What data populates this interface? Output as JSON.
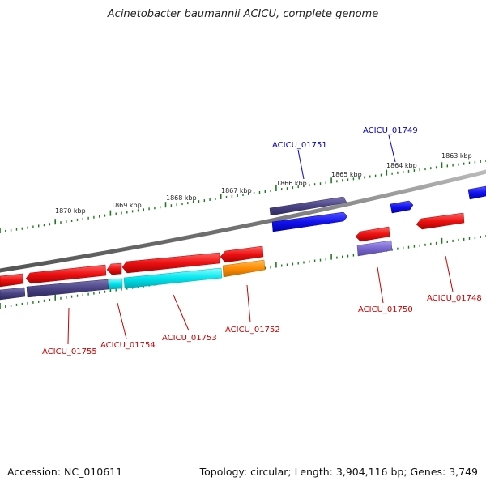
{
  "title": "Acinetobacter baumannii ACICU, complete genome",
  "footer": {
    "accession": "Accession: NC_010611",
    "topology": "Topology: circular; Length: 3,904,116 bp; Genes: 3,749"
  },
  "colors": {
    "backbone": "#888888",
    "tick_marks": "#1f7a1f",
    "gene_red": "#ee1111",
    "gene_slate": "#4a4485",
    "gene_blue": "#1111ee",
    "gene_cyan": "#00e5ee",
    "gene_orange": "#ff8c00",
    "gene_lavender": "#7b68cf",
    "label_red": "#cc0000",
    "label_blue": "#0000cc"
  },
  "scale": {
    "unit": "kbp",
    "ticks": [
      "1870 kbp",
      "1869 kbp",
      "1868 kbp",
      "1867 kbp",
      "1866 kbp",
      "1865 kbp",
      "1864 kbp",
      "1863 kbp"
    ]
  },
  "gene_labels": [
    {
      "name": "ACICU_01751",
      "strand": "forward",
      "color": "blue"
    },
    {
      "name": "ACICU_01749",
      "strand": "forward",
      "color": "blue"
    },
    {
      "name": "ACICU_01755",
      "strand": "reverse",
      "color": "red"
    },
    {
      "name": "ACICU_01754",
      "strand": "reverse",
      "color": "red"
    },
    {
      "name": "ACICU_01753",
      "strand": "reverse",
      "color": "red"
    },
    {
      "name": "ACICU_01752",
      "strand": "reverse",
      "color": "red"
    },
    {
      "name": "ACICU_01750",
      "strand": "reverse",
      "color": "red"
    },
    {
      "name": "ACICU_01748",
      "strand": "reverse",
      "color": "red"
    }
  ]
}
